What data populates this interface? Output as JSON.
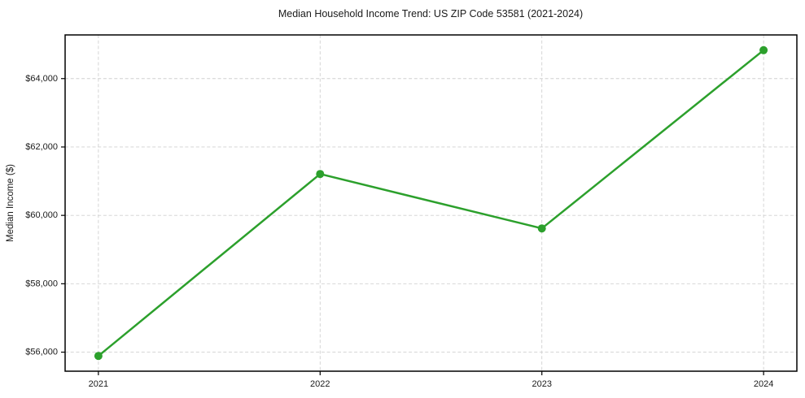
{
  "chart_data": {
    "type": "line",
    "title": "Median Household Income Trend: US ZIP Code 53581 (2021-2024)",
    "xlabel": "",
    "ylabel": "Median Income ($)",
    "x": [
      2021,
      2022,
      2023,
      2024
    ],
    "x_tick_labels": [
      "2021",
      "2022",
      "2023",
      "2024"
    ],
    "values": [
      55890,
      61210,
      59620,
      64830
    ],
    "y_ticks": [
      {
        "value": 56000,
        "label": "$56,000"
      },
      {
        "value": 58000,
        "label": "$58,000"
      },
      {
        "value": 60000,
        "label": "$60,000"
      },
      {
        "value": 62000,
        "label": "$62,000"
      },
      {
        "value": 64000,
        "label": "$64,000"
      }
    ],
    "xlim": [
      2020.85,
      2024.15
    ],
    "ylim": [
      55443,
      65277
    ],
    "grid": true,
    "grid_style": "dashed",
    "legend": "none",
    "colors": {
      "line": "#2ca02c",
      "marker": "#2ca02c",
      "grid": "#d0d0d0",
      "axis": "#000000",
      "text": "#1a1a1a",
      "background": "#ffffff"
    }
  }
}
